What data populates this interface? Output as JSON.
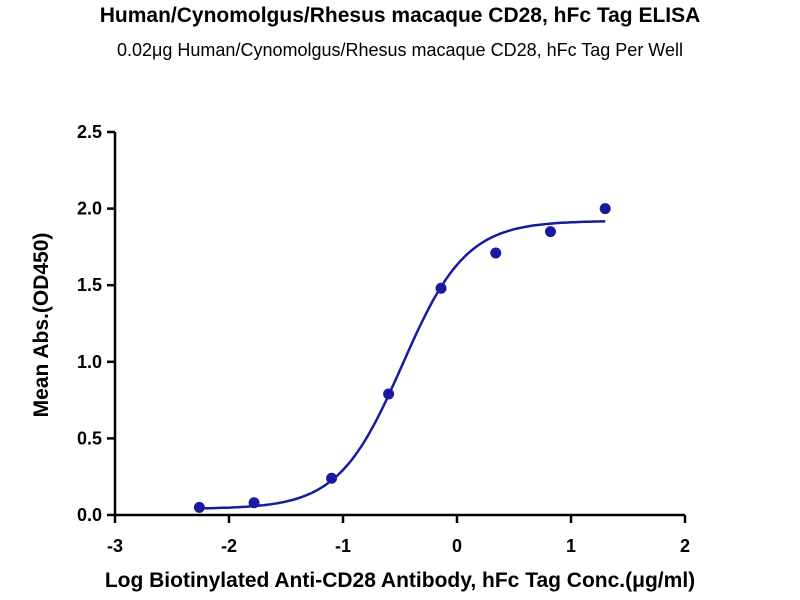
{
  "chart_data": {
    "type": "scatter",
    "title": "Human/Cynomolgus/Rhesus macaque CD28, hFc Tag ELISA",
    "subtitle": "0.02μg Human/Cynomolgus/Rhesus macaque CD28, hFc Tag Per Well",
    "xlabel": "Log Biotinylated Anti-CD28 Antibody, hFc Tag Conc.(μg/ml)",
    "ylabel": "Mean Abs.(OD450)",
    "xlim": [
      -3,
      2
    ],
    "ylim": [
      0,
      2.5
    ],
    "x_ticks": [
      "-3",
      "-2",
      "-1",
      "0",
      "1",
      "2"
    ],
    "y_ticks": [
      "0.0",
      "0.5",
      "1.0",
      "1.5",
      "2.0",
      "2.5"
    ],
    "grid": false,
    "legend": "none",
    "series": [
      {
        "points": [
          {
            "x": -2.26,
            "y": 0.05
          },
          {
            "x": -1.78,
            "y": 0.08
          },
          {
            "x": -1.1,
            "y": 0.24
          },
          {
            "x": -0.6,
            "y": 0.79
          },
          {
            "x": -0.14,
            "y": 1.48
          },
          {
            "x": 0.34,
            "y": 1.71
          },
          {
            "x": 0.82,
            "y": 1.85
          },
          {
            "x": 1.3,
            "y": 2.0
          }
        ],
        "fit": {
          "model": "4PL",
          "bottom": 0.04,
          "top": 1.92,
          "logEC50": -0.48,
          "hill": 1.55,
          "x_range": [
            -2.26,
            1.3
          ]
        }
      }
    ],
    "colors": {
      "series": "#1a1a9e",
      "axis": "#000000"
    }
  }
}
